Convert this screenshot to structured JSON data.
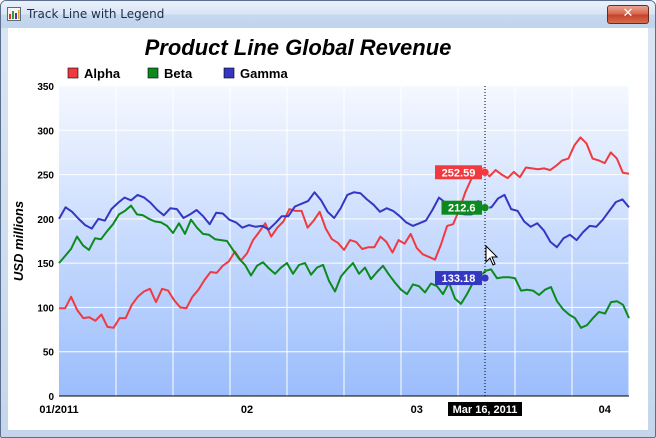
{
  "window": {
    "title": "Track Line with Legend",
    "close_glyph": "✕"
  },
  "colors": {
    "alpha": "#f03a3f",
    "beta": "#0d8a1e",
    "gamma": "#3437c2"
  },
  "chart_data": {
    "type": "line",
    "title": "Product Line Global Revenue",
    "ylabel": "USD millions",
    "xlabel": "",
    "ylim": [
      0,
      350
    ],
    "yticks": [
      "0",
      "50",
      "100",
      "150",
      "200",
      "250",
      "300",
      "350"
    ],
    "xticks": [
      "01/2011",
      "02",
      "03",
      "04"
    ],
    "legend_placement": "top-left",
    "grid": true,
    "track": {
      "label": "Mar 16, 2011",
      "values": [
        "252.59",
        "212.6",
        "133.18"
      ]
    },
    "series": [
      {
        "name": "Alpha",
        "values": [
          99,
          99,
          112,
          97,
          88,
          89,
          85,
          92,
          78,
          77,
          88,
          88,
          103,
          112,
          118,
          121,
          106,
          121,
          119,
          108,
          100,
          99,
          112,
          120,
          131,
          140,
          139,
          147,
          152,
          163,
          153,
          161,
          176,
          185,
          195,
          180,
          190,
          197,
          211,
          209,
          209,
          190,
          198,
          208,
          189,
          177,
          173,
          165,
          176,
          174,
          166,
          168,
          168,
          180,
          174,
          162,
          176,
          172,
          183,
          167,
          160,
          157,
          154,
          171,
          192,
          194,
          210,
          230,
          245,
          253,
          257,
          248,
          255,
          250,
          246,
          253,
          247,
          258,
          257,
          256,
          257,
          255,
          260,
          266,
          268,
          283,
          292,
          285,
          268,
          266,
          263,
          275,
          268,
          252,
          251
        ]
      },
      {
        "name": "Beta",
        "values": [
          150,
          158,
          166,
          180,
          170,
          165,
          178,
          177,
          186,
          194,
          205,
          209,
          215,
          205,
          204,
          200,
          197,
          196,
          192,
          184,
          195,
          183,
          199,
          190,
          183,
          182,
          177,
          176,
          175,
          165,
          155,
          148,
          136,
          147,
          151,
          144,
          138,
          145,
          150,
          138,
          148,
          150,
          137,
          145,
          148,
          130,
          118,
          135,
          143,
          150,
          138,
          145,
          132,
          140,
          147,
          137,
          128,
          120,
          115,
          126,
          124,
          117,
          127,
          124,
          115,
          128,
          110,
          104,
          115,
          128,
          133,
          141,
          143,
          133,
          134,
          134,
          133,
          119,
          120,
          119,
          114,
          120,
          123,
          107,
          98,
          92,
          88,
          77,
          80,
          88,
          95,
          93,
          106,
          107,
          103,
          88
        ]
      },
      {
        "name": "Gamma",
        "values": [
          200,
          213,
          208,
          200,
          193,
          189,
          200,
          198,
          211,
          218,
          224,
          221,
          227,
          224,
          218,
          210,
          204,
          212,
          211,
          201,
          205,
          210,
          203,
          194,
          207,
          206,
          199,
          196,
          190,
          193,
          191,
          192,
          188,
          195,
          203,
          203,
          214,
          217,
          220,
          230,
          221,
          208,
          201,
          212,
          227,
          230,
          229,
          222,
          216,
          208,
          212,
          209,
          203,
          196,
          192,
          195,
          198,
          210,
          224,
          218,
          213,
          206,
          205,
          205,
          220,
          212,
          213,
          223,
          227,
          211,
          209,
          197,
          191,
          195,
          187,
          174,
          168,
          178,
          182,
          176,
          185,
          192,
          191,
          199,
          209,
          219,
          222,
          213
        ]
      }
    ]
  }
}
